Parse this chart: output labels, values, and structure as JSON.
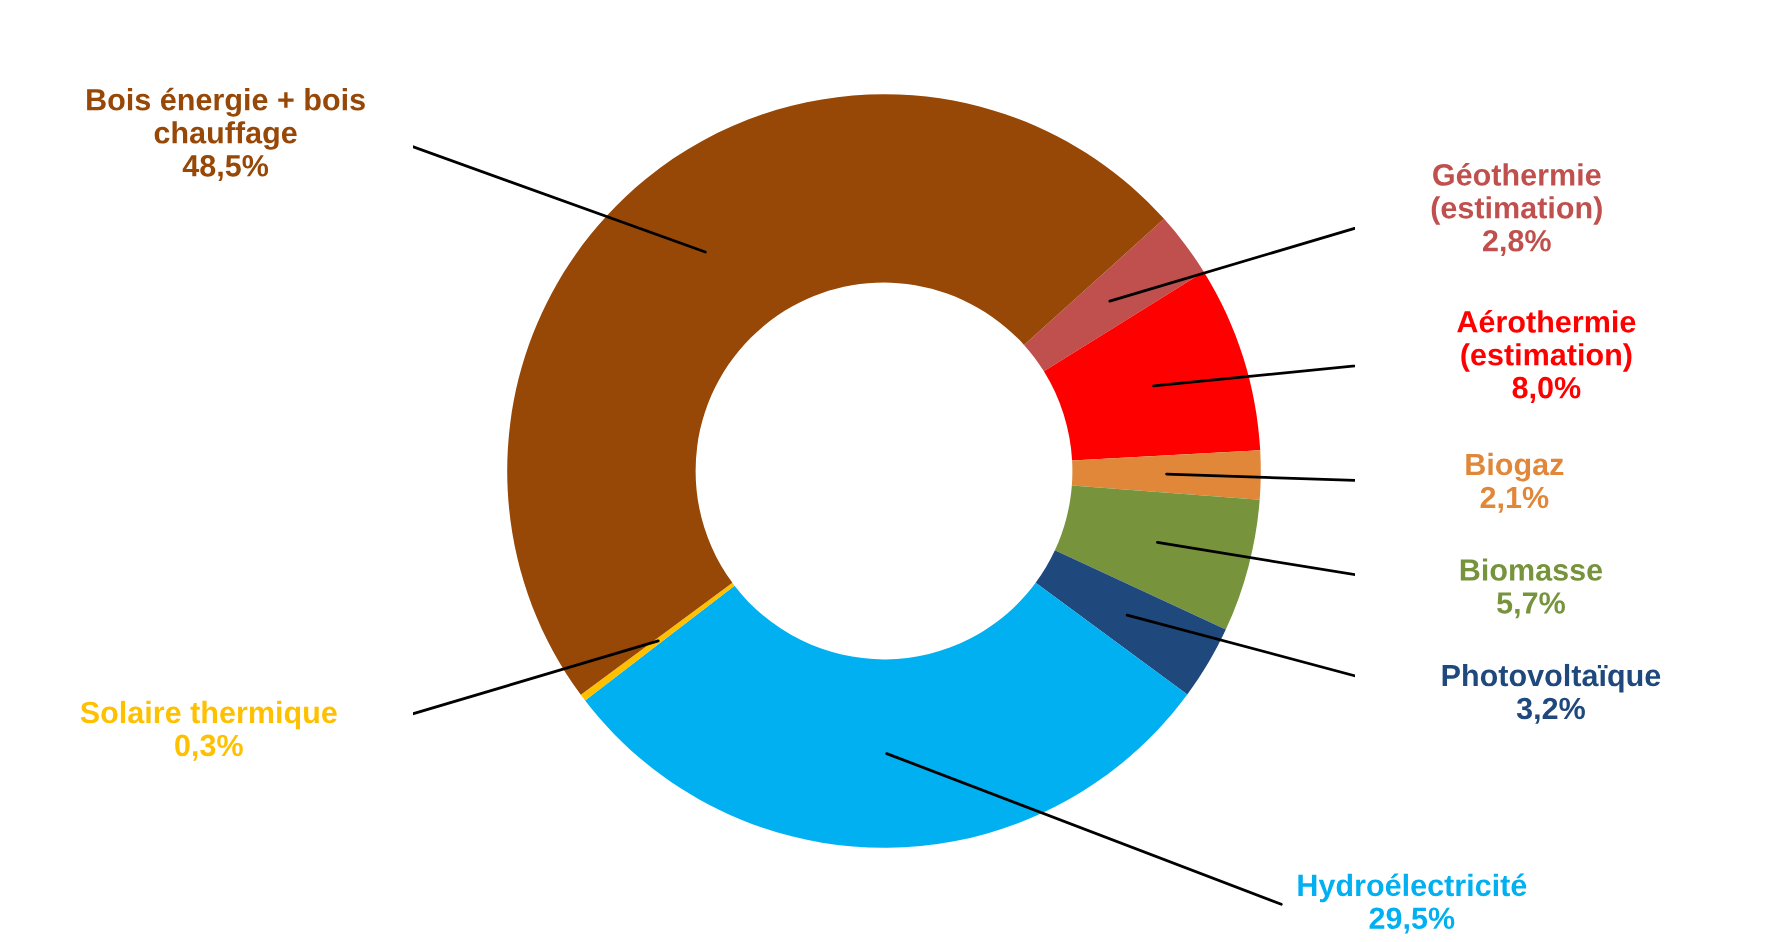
{
  "chart_data": {
    "type": "donut",
    "categories": [
      "Géothermie\n(estimation)",
      "Aérothermie\n(estimation)",
      "Biogaz",
      "Biomasse",
      "Photovoltaïque",
      "Hydroélectricité",
      "Solaire thermique",
      "Bois énergie + bois\nchauffage"
    ],
    "values": [
      2.8,
      8.0,
      2.1,
      5.7,
      3.2,
      29.5,
      0.3,
      48.5
    ],
    "colors": [
      "#c0504d",
      "#ff0000",
      "#e0873a",
      "#77933c",
      "#1f497d",
      "#00b0f0",
      "#ffc000",
      "#974706"
    ],
    "value_labels": [
      "2,8%",
      "8,0%",
      "2,1%",
      "5,7%",
      "3,2%",
      "29,5%",
      "0,3%",
      "48,5%"
    ],
    "legend": false
  }
}
